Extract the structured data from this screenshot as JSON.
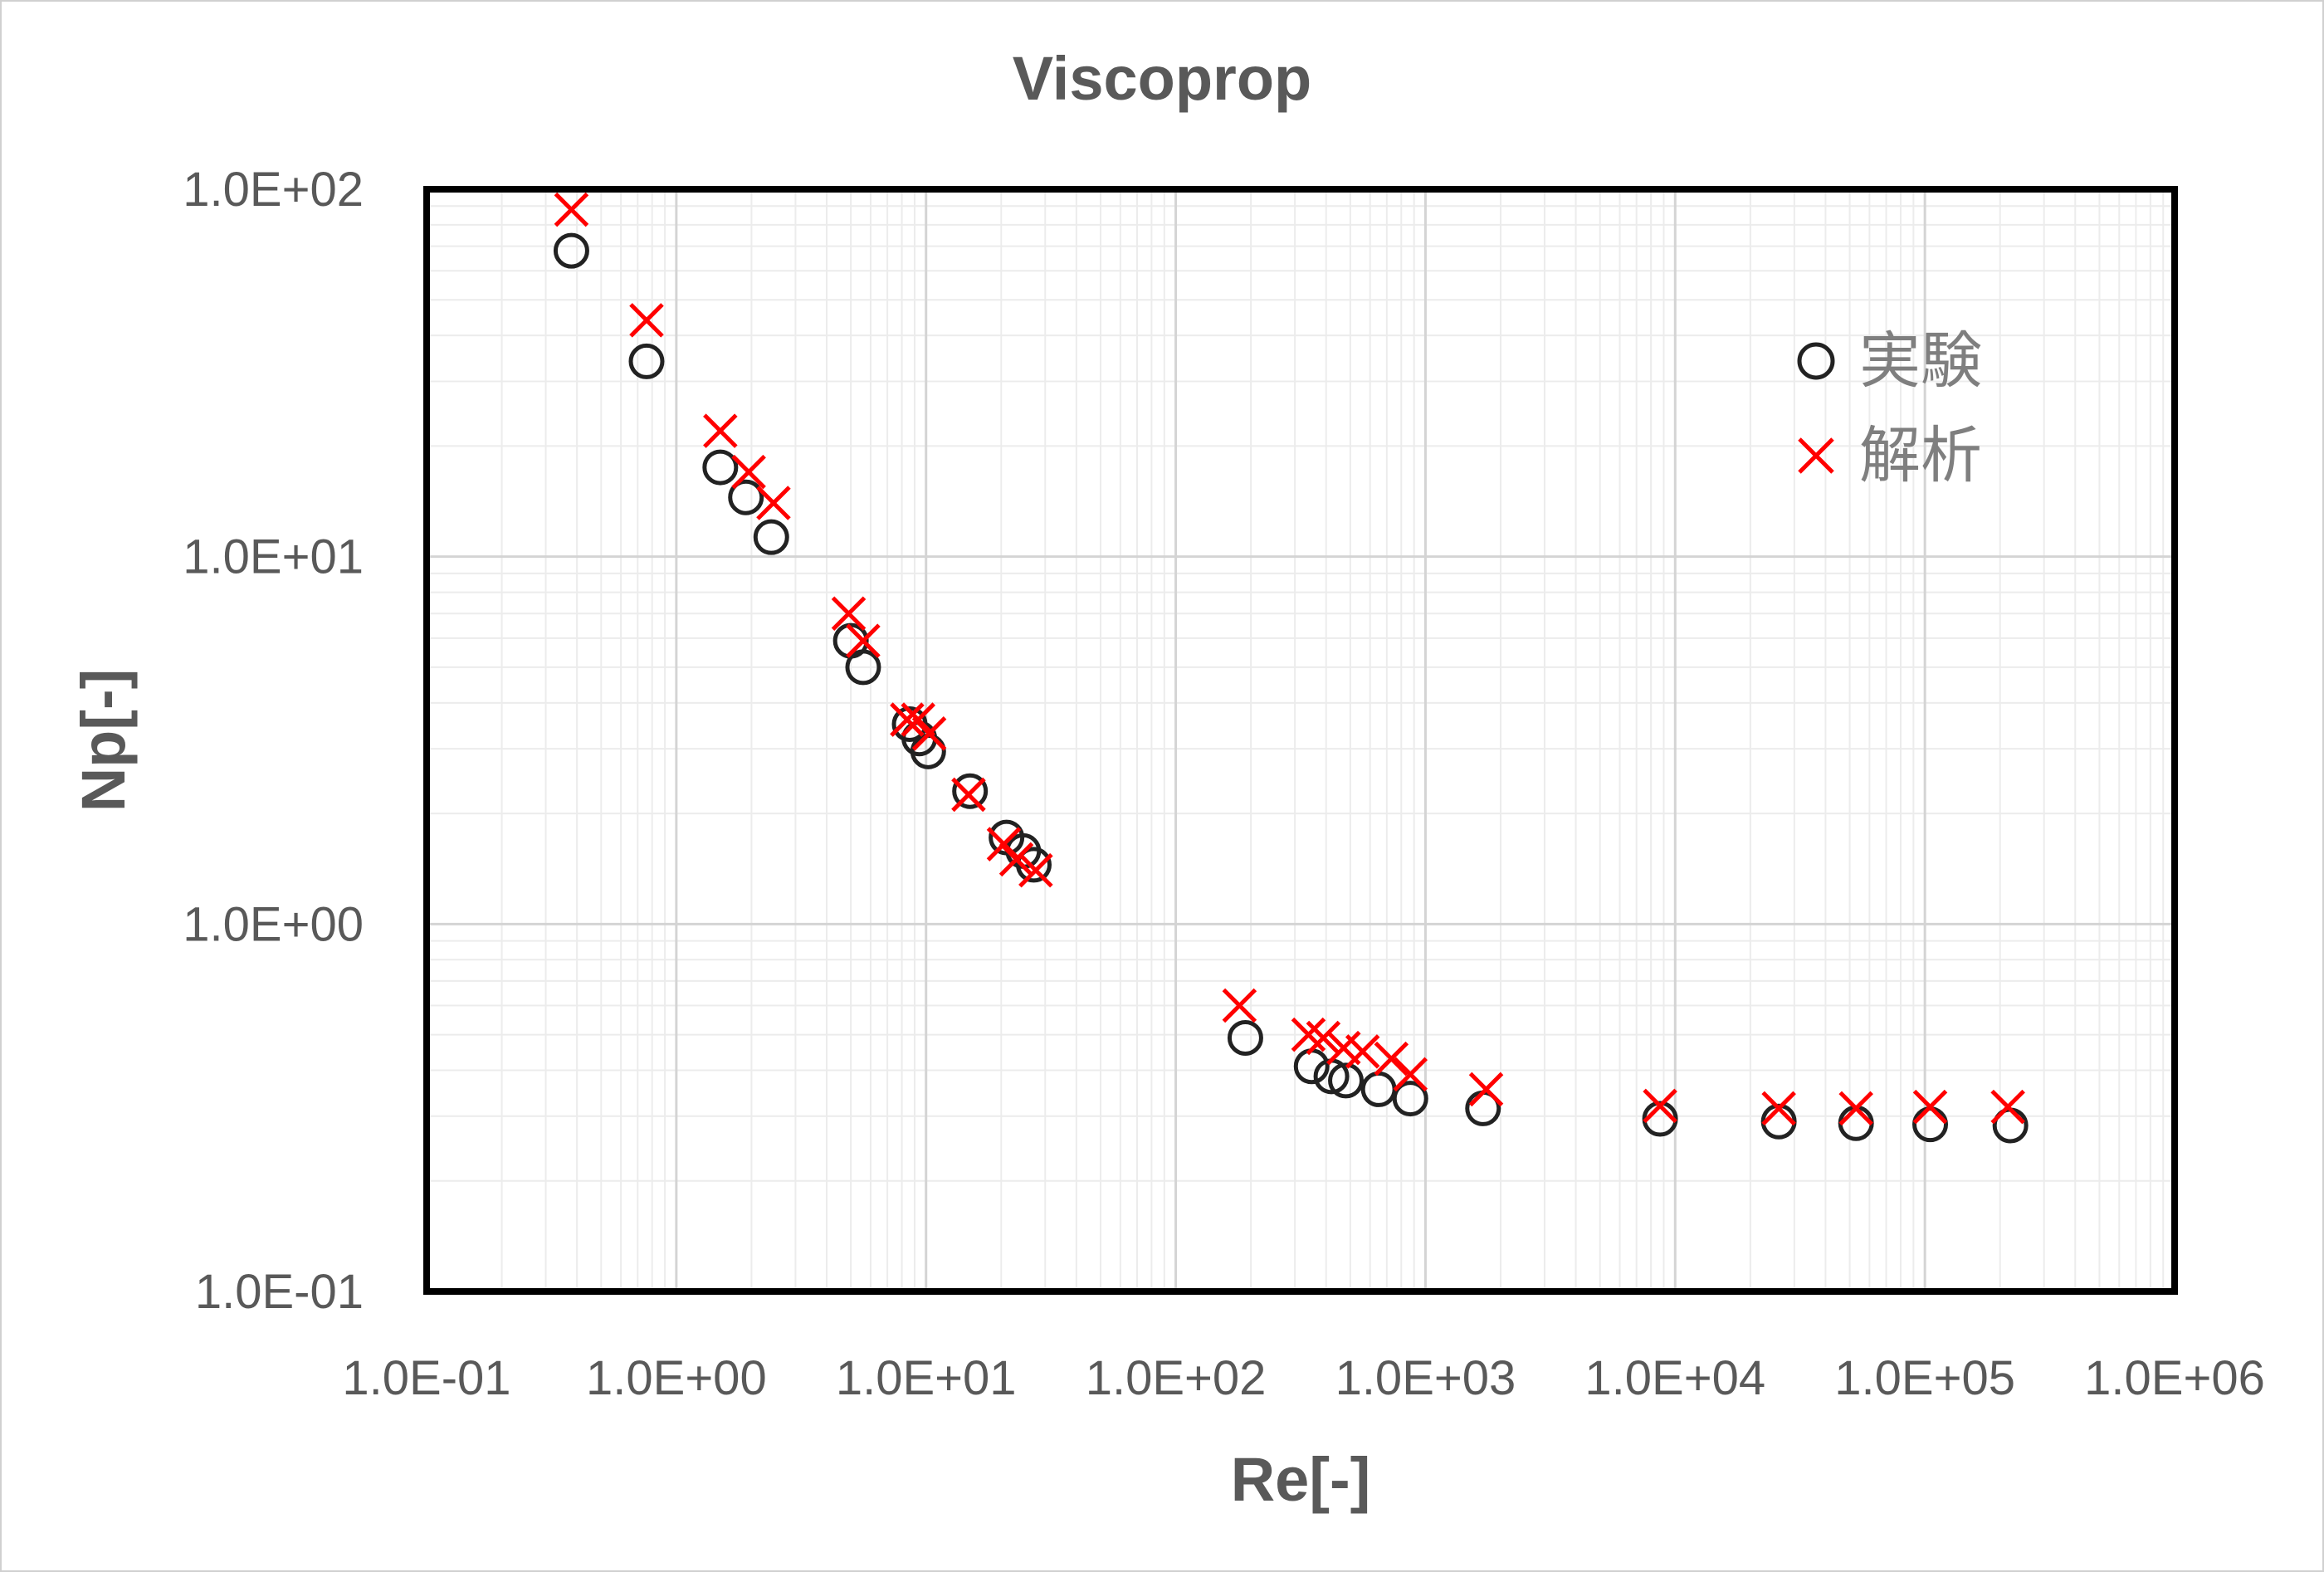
{
  "chart_data": {
    "type": "scatter",
    "title": "Viscoprop",
    "xlabel": "Re[-]",
    "ylabel": "Np[-]",
    "xscale": "log",
    "yscale": "log",
    "xlim": [
      0.1,
      1000000
    ],
    "ylim": [
      0.1,
      100
    ],
    "xticks": [
      "1.0E-01",
      "1.0E+00",
      "1.0E+01",
      "1.0E+02",
      "1.0E+03",
      "1.0E+04",
      "1.0E+05",
      "1.0E+06"
    ],
    "yticks": [
      "1.0E-01",
      "1.0E+00",
      "1.0E+01",
      "1.0E+02"
    ],
    "grid": true,
    "legend_position": "top-right",
    "series": [
      {
        "name": "実験",
        "marker": "circle",
        "color": "#222222",
        "points": [
          [
            0.38,
            68
          ],
          [
            0.76,
            34
          ],
          [
            1.5,
            17.5
          ],
          [
            1.9,
            14.5
          ],
          [
            2.4,
            11.3
          ],
          [
            5.0,
            5.9
          ],
          [
            5.6,
            5.0
          ],
          [
            8.6,
            3.5
          ],
          [
            9.4,
            3.2
          ],
          [
            10.2,
            2.95
          ],
          [
            15.0,
            2.3
          ],
          [
            21.0,
            1.72
          ],
          [
            24.5,
            1.58
          ],
          [
            27.0,
            1.45
          ],
          [
            190,
            0.49
          ],
          [
            350,
            0.41
          ],
          [
            420,
            0.385
          ],
          [
            480,
            0.375
          ],
          [
            650,
            0.355
          ],
          [
            870,
            0.335
          ],
          [
            1700,
            0.315
          ],
          [
            8700,
            0.295
          ],
          [
            26000,
            0.29
          ],
          [
            53000,
            0.287
          ],
          [
            105000,
            0.285
          ],
          [
            220000,
            0.283
          ]
        ]
      },
      {
        "name": "解析",
        "marker": "x",
        "color": "#ff0000",
        "points": [
          [
            0.38,
            88
          ],
          [
            0.76,
            44
          ],
          [
            1.5,
            22
          ],
          [
            1.95,
            17
          ],
          [
            2.45,
            14
          ],
          [
            4.9,
            7.0
          ],
          [
            5.6,
            5.9
          ],
          [
            8.4,
            3.6
          ],
          [
            9.3,
            3.6
          ],
          [
            10.3,
            3.3
          ],
          [
            14.8,
            2.25
          ],
          [
            20.5,
            1.65
          ],
          [
            23.0,
            1.5
          ],
          [
            27.5,
            1.4
          ],
          [
            180,
            0.6
          ],
          [
            340,
            0.5
          ],
          [
            390,
            0.49
          ],
          [
            470,
            0.46
          ],
          [
            560,
            0.45
          ],
          [
            730,
            0.43
          ],
          [
            870,
            0.39
          ],
          [
            1750,
            0.355
          ],
          [
            8700,
            0.32
          ],
          [
            26000,
            0.315
          ],
          [
            53000,
            0.315
          ],
          [
            105000,
            0.318
          ],
          [
            215000,
            0.318
          ]
        ]
      }
    ]
  }
}
